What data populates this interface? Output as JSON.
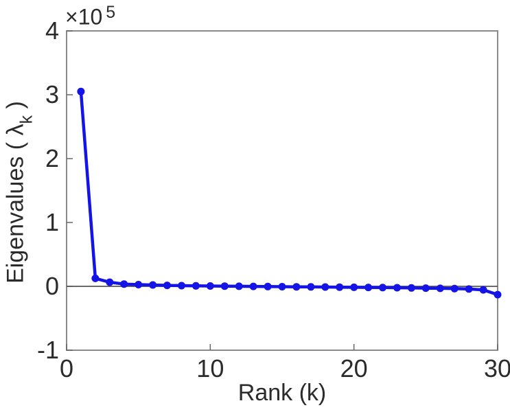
{
  "axes": {
    "offset_base": "×10",
    "offset_exponent": "5",
    "xlabel": "Rank (k)",
    "ylabel_prefix": "Eigenvalues ( ",
    "ylabel_symbol": "λ",
    "ylabel_subscript": "k",
    "ylabel_suffix": " )"
  },
  "colors": {
    "line": "#1414e6",
    "axis_box": "#8a8a8a",
    "tick": "#666666",
    "zero_line": "#555555",
    "text": "#2b2b2b",
    "background": "#ffffff"
  },
  "chart_data": {
    "type": "line",
    "title": "",
    "xlabel": "Rank (k)",
    "ylabel": "Eigenvalues ( λ_k )",
    "y_axis_multiplier": "×10^5",
    "x": [
      1,
      2,
      3,
      4,
      5,
      6,
      7,
      8,
      9,
      10,
      11,
      12,
      13,
      14,
      15,
      16,
      17,
      18,
      19,
      20,
      21,
      22,
      23,
      24,
      25,
      26,
      27,
      28,
      29,
      30
    ],
    "values": [
      305000,
      12500,
      6500,
      3600,
      2700,
      2100,
      1500,
      1100,
      800,
      500,
      300,
      100,
      -100,
      -300,
      -500,
      -700,
      -900,
      -1100,
      -1300,
      -1500,
      -1700,
      -1900,
      -2200,
      -2500,
      -2800,
      -3100,
      -3500,
      -4200,
      -5500,
      -13000
    ],
    "xlim": [
      0,
      30
    ],
    "ylim": [
      -100000,
      400000
    ],
    "x_ticks": [
      0,
      10,
      20,
      30
    ],
    "x_tick_labels": [
      "0",
      "10",
      "20",
      "30"
    ],
    "y_ticks": [
      -100000,
      0,
      100000,
      200000,
      300000,
      400000
    ],
    "y_tick_labels": [
      "-1",
      "0",
      "1",
      "2",
      "3",
      "4"
    ],
    "grid": false,
    "legend": null,
    "marker": "circle",
    "zero_line": true
  }
}
